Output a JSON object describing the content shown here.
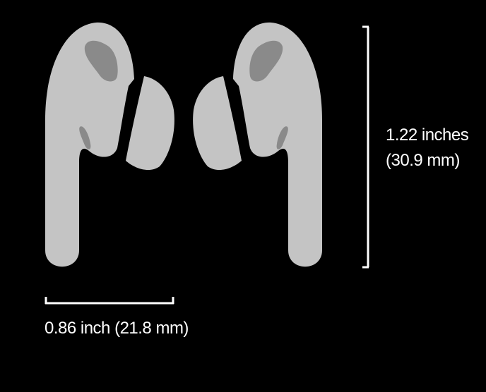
{
  "diagram": {
    "height_dimension": {
      "imperial": "1.22 inches",
      "metric": "(30.9 mm)"
    },
    "width_dimension": {
      "text": "0.86 inch (21.8 mm)"
    }
  },
  "colors": {
    "background": "#000000",
    "earbud_body": "#c4c4c4",
    "earbud_tip": "#c4c4c4",
    "earbud_vent": "#8a8a8a",
    "dimension_line": "#ffffff",
    "label_text": "#ffffff"
  }
}
